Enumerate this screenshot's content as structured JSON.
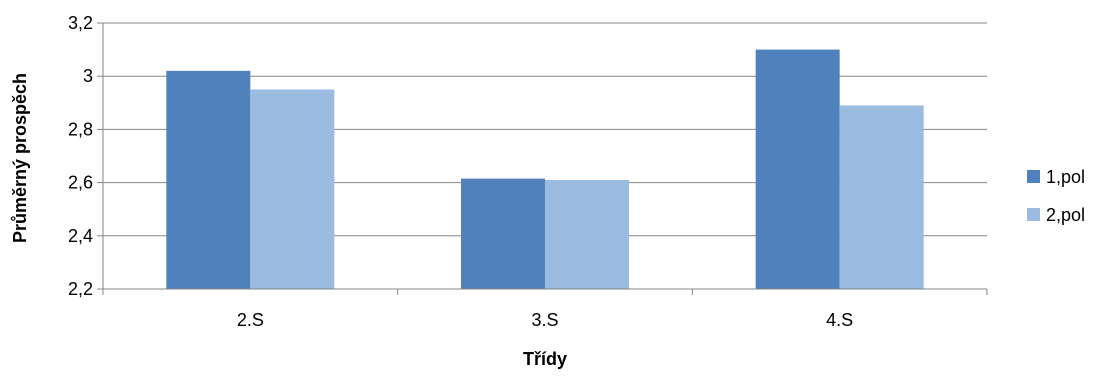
{
  "chart_data": {
    "type": "bar",
    "categories": [
      "2.S",
      "3.S",
      "4.S"
    ],
    "series": [
      {
        "name": "1,pol",
        "values": [
          3.02,
          2.615,
          3.1
        ],
        "color": "#4f81bd"
      },
      {
        "name": "2,pol",
        "values": [
          2.95,
          2.61,
          2.89
        ],
        "color": "#9bbbe0"
      }
    ],
    "title": "",
    "xlabel": "Třídy",
    "ylabel": "Průměrný prospěch",
    "ylim": [
      2.2,
      3.2
    ],
    "yticks": [
      2.2,
      2.4,
      2.6,
      2.8,
      3.0,
      3.2
    ],
    "ytick_labels": [
      "2,2",
      "2,4",
      "2,6",
      "2,8",
      "3",
      "3,2"
    ],
    "grid": true,
    "legend_position": "right"
  }
}
